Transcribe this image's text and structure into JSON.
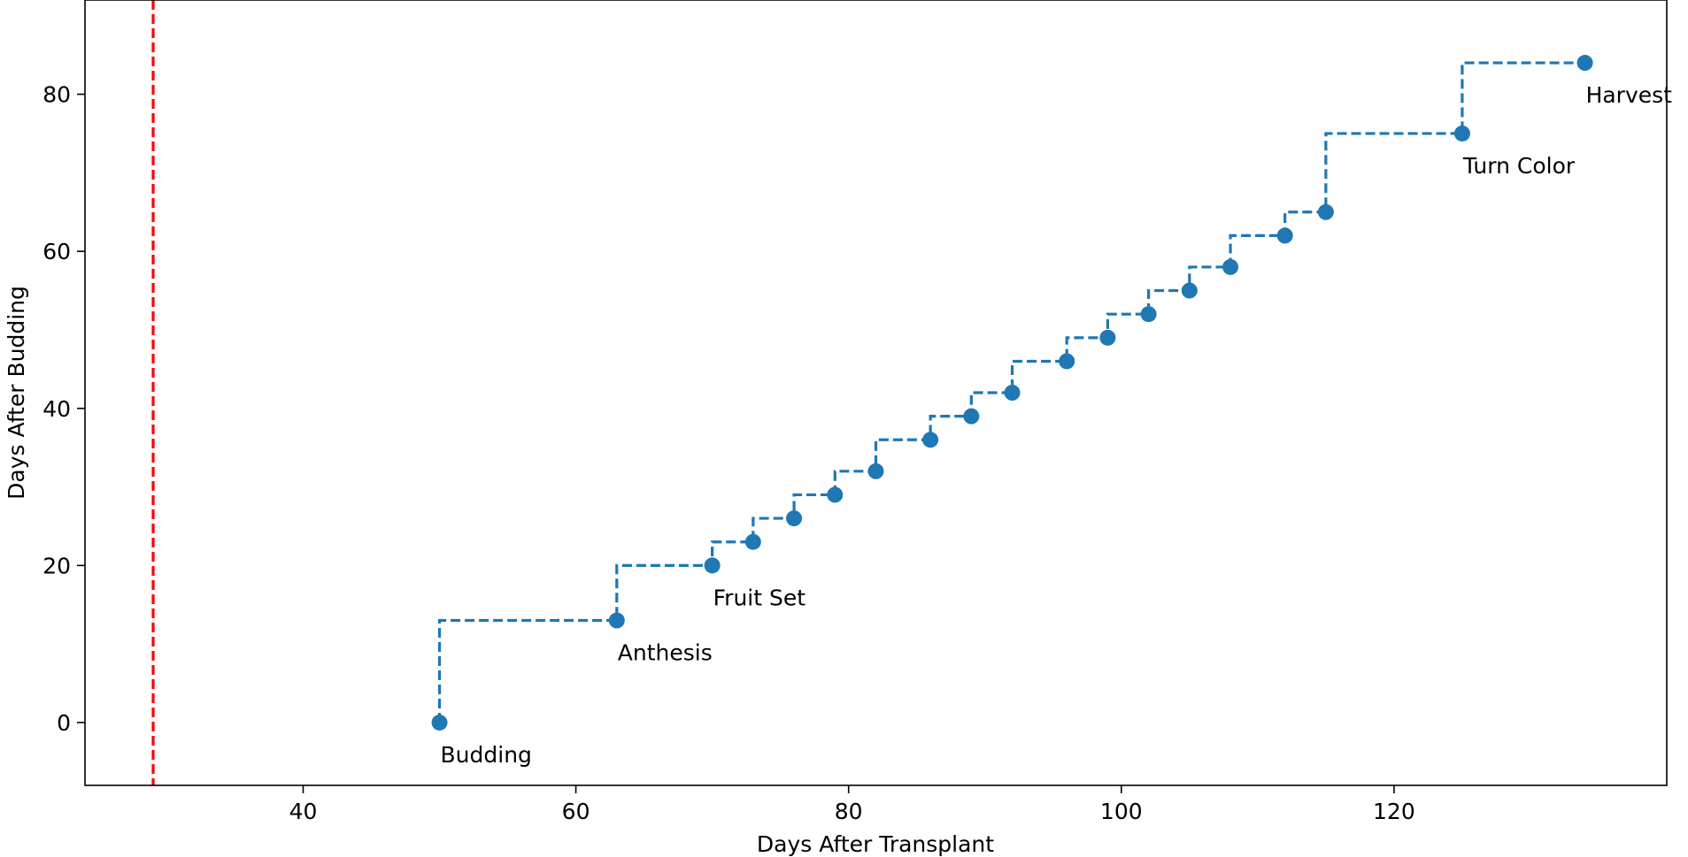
{
  "chart_data": {
    "type": "line",
    "title": "",
    "xlabel": "Days After Transplant",
    "ylabel": "Days After Budding",
    "xlim": [
      24,
      140
    ],
    "ylim": [
      -8,
      92
    ],
    "x_ticks": [
      40,
      60,
      80,
      100,
      120
    ],
    "y_ticks": [
      0,
      20,
      40,
      60,
      80
    ],
    "grid": false,
    "legend": "none",
    "colors": {
      "series": "#1f77b4",
      "reference_line": "#ff0000"
    },
    "reference_line": {
      "x": 29,
      "style": "dashed"
    },
    "series": [
      {
        "step": "post",
        "line_style": "dashed",
        "marker": "circle",
        "points": [
          {
            "x": 50,
            "y": 0
          },
          {
            "x": 63,
            "y": 13
          },
          {
            "x": 70,
            "y": 20
          },
          {
            "x": 73,
            "y": 23
          },
          {
            "x": 76,
            "y": 26
          },
          {
            "x": 79,
            "y": 29
          },
          {
            "x": 82,
            "y": 32
          },
          {
            "x": 86,
            "y": 36
          },
          {
            "x": 89,
            "y": 39
          },
          {
            "x": 92,
            "y": 42
          },
          {
            "x": 96,
            "y": 46
          },
          {
            "x": 99,
            "y": 49
          },
          {
            "x": 102,
            "y": 52
          },
          {
            "x": 105,
            "y": 55
          },
          {
            "x": 108,
            "y": 58
          },
          {
            "x": 112,
            "y": 62
          },
          {
            "x": 115,
            "y": 65
          },
          {
            "x": 125,
            "y": 75
          },
          {
            "x": 134,
            "y": 84
          }
        ]
      }
    ],
    "annotations": [
      {
        "text": "Budding",
        "x": 50,
        "y": 0
      },
      {
        "text": "Anthesis",
        "x": 63,
        "y": 13
      },
      {
        "text": "Fruit Set",
        "x": 70,
        "y": 20
      },
      {
        "text": "Turn Color",
        "x": 125,
        "y": 75
      },
      {
        "text": "Harvest",
        "x": 134,
        "y": 84
      }
    ]
  }
}
